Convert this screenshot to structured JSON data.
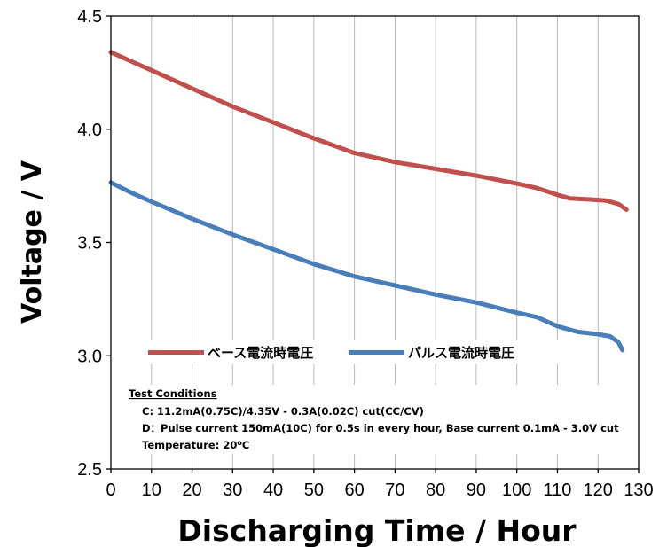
{
  "chart_data": {
    "type": "line",
    "xlabel": "Discharging Time / Hour",
    "ylabel": "Voltage / V",
    "xlim": [
      0,
      130
    ],
    "ylim": [
      2.5,
      4.5
    ],
    "x_ticks": [
      "0",
      "10",
      "20",
      "30",
      "40",
      "50",
      "60",
      "70",
      "80",
      "90",
      "100",
      "110",
      "120",
      "130"
    ],
    "y_ticks": [
      "2.5",
      "3.0",
      "3.5",
      "4.0",
      "4.5"
    ],
    "grid": "vertical",
    "legend_position": "inside-lower",
    "series": [
      {
        "name": "ベース電流時電圧",
        "color": "#c0504d",
        "points": [
          [
            0,
            4.34
          ],
          [
            5,
            4.3
          ],
          [
            10,
            4.26
          ],
          [
            20,
            4.18
          ],
          [
            30,
            4.1
          ],
          [
            40,
            4.03
          ],
          [
            50,
            3.96
          ],
          [
            60,
            3.895
          ],
          [
            70,
            3.855
          ],
          [
            80,
            3.825
          ],
          [
            90,
            3.795
          ],
          [
            100,
            3.76
          ],
          [
            105,
            3.74
          ],
          [
            110,
            3.71
          ],
          [
            113,
            3.695
          ],
          [
            118,
            3.69
          ],
          [
            122,
            3.685
          ],
          [
            125,
            3.67
          ],
          [
            127,
            3.645
          ]
        ]
      },
      {
        "name": "パルス電流時電圧",
        "color": "#4a7ebb",
        "points": [
          [
            0,
            3.765
          ],
          [
            5,
            3.72
          ],
          [
            10,
            3.68
          ],
          [
            20,
            3.605
          ],
          [
            30,
            3.535
          ],
          [
            40,
            3.47
          ],
          [
            50,
            3.405
          ],
          [
            60,
            3.35
          ],
          [
            70,
            3.31
          ],
          [
            80,
            3.27
          ],
          [
            90,
            3.235
          ],
          [
            100,
            3.19
          ],
          [
            105,
            3.17
          ],
          [
            110,
            3.13
          ],
          [
            115,
            3.105
          ],
          [
            120,
            3.095
          ],
          [
            123,
            3.085
          ],
          [
            125,
            3.06
          ],
          [
            126,
            3.025
          ]
        ]
      }
    ],
    "annotation": {
      "title": "Test Conditions",
      "lines": [
        "C: 11.2mA(0.75C)/4.35V - 0.3A(0.02C) cut(CC/CV)",
        "D：Pulse current 150mA(10C) for 0.5s in every hour, Base current 0.1mA - 3.0V cut"
      ],
      "temperature_prefix": "Temperature: 20",
      "temperature_sup": "o",
      "temperature_suffix": "C"
    }
  }
}
